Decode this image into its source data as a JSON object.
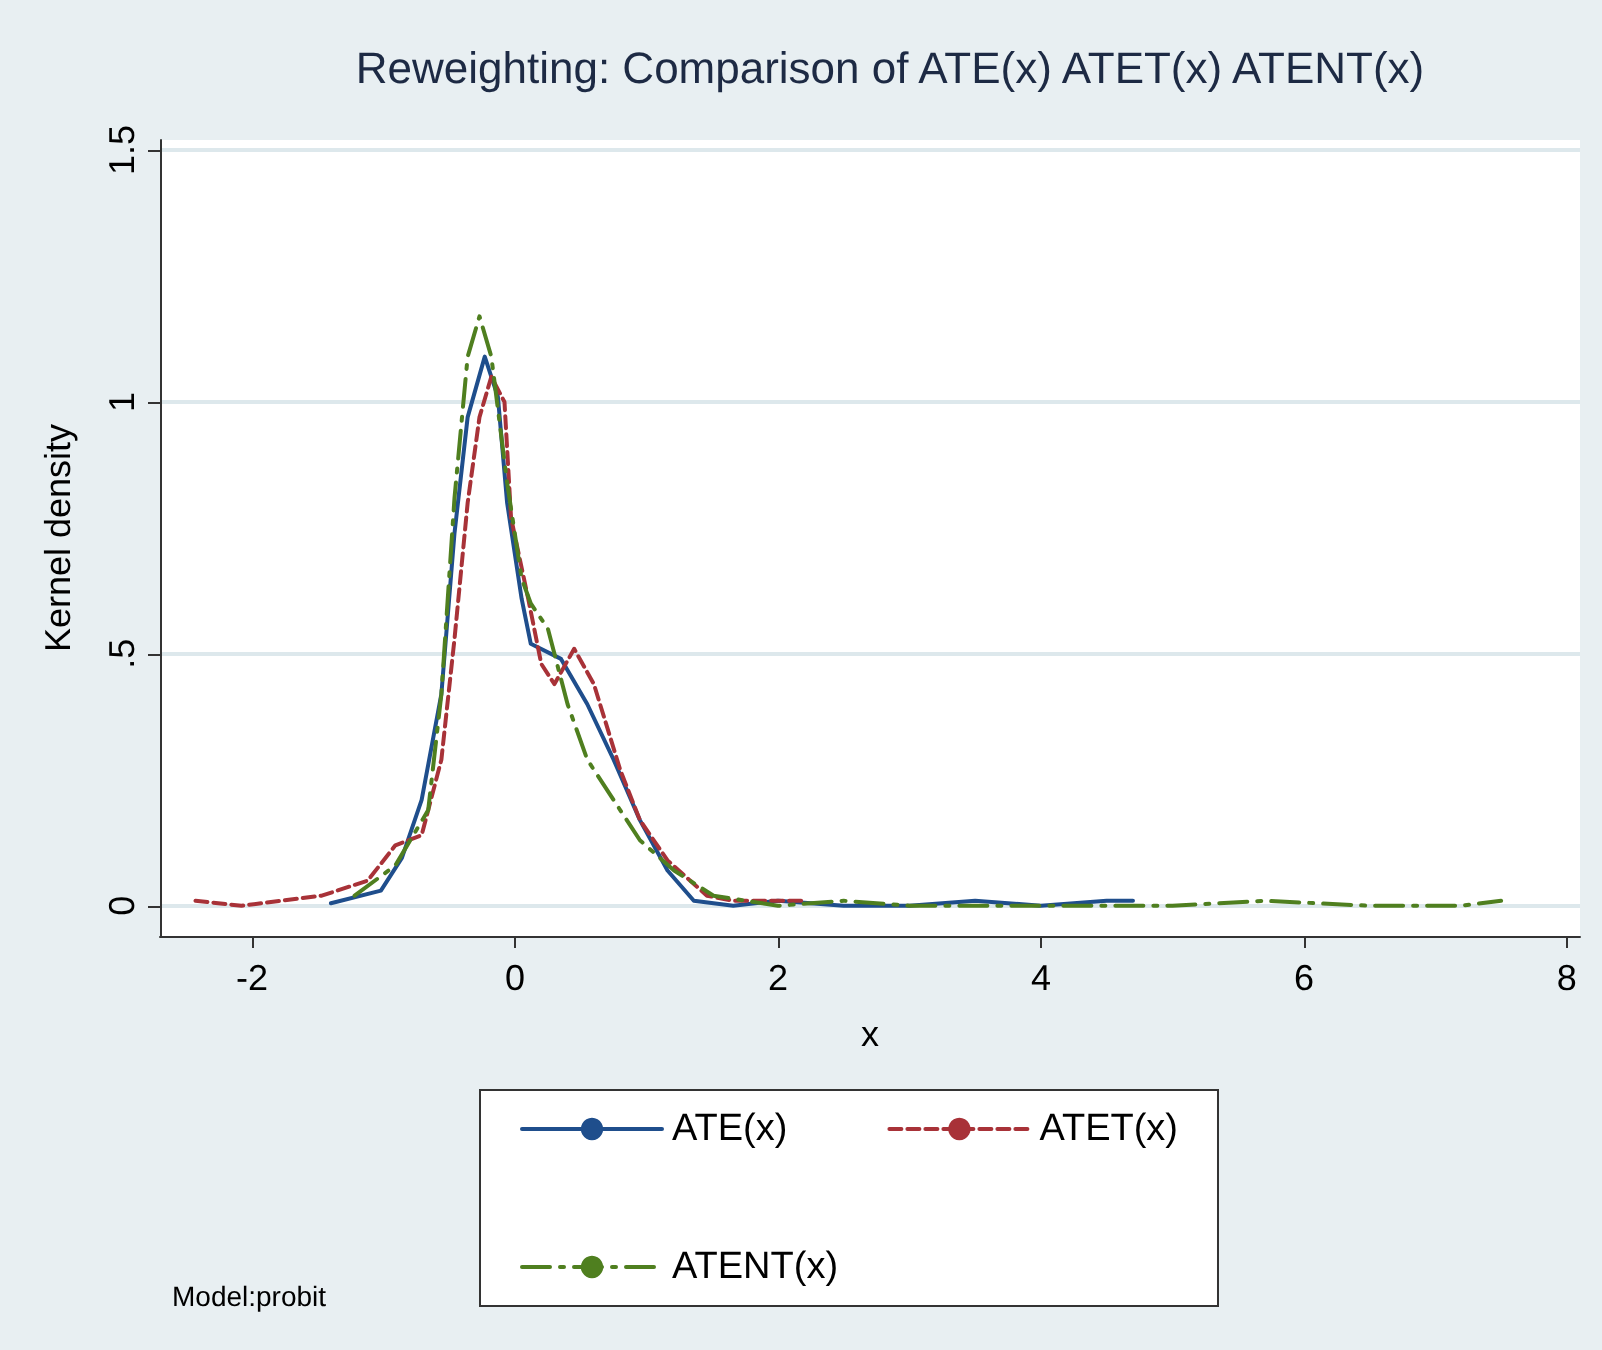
{
  "chart_data": {
    "type": "line",
    "title": "Reweighting: Comparison of ATE(x) ATET(x) ATENT(x)",
    "xlabel": "x",
    "ylabel": "Kernel density",
    "annotations": [
      "Model:probit"
    ],
    "xlim": [
      -2.7,
      8.1
    ],
    "xticks": [
      -2,
      0,
      2,
      4,
      6,
      8
    ],
    "ylim": [
      -0.06,
      1.52
    ],
    "yticks": [
      {
        "value": 0,
        "label": "0"
      },
      {
        "value": 0.5,
        "label": ".5"
      },
      {
        "value": 1,
        "label": "1"
      },
      {
        "value": 1.5,
        "label": "1.5"
      }
    ],
    "grid": "y",
    "legend": "bottom",
    "marker": "none",
    "series": [
      {
        "name": "ATE(x)",
        "color": "#1f4e8c",
        "line_style": "solid",
        "x": [
          -1.4,
          -1.02,
          -0.86,
          -0.71,
          -0.56,
          -0.46,
          -0.36,
          -0.23,
          -0.13,
          -0.06,
          0.05,
          0.12,
          0.35,
          0.55,
          0.75,
          0.95,
          1.16,
          1.36,
          1.66,
          2.0,
          2.5,
          3.0,
          3.5,
          4.0,
          4.5,
          4.7
        ],
        "values": [
          0.005,
          0.03,
          0.095,
          0.21,
          0.42,
          0.74,
          0.97,
          1.09,
          1.01,
          0.8,
          0.61,
          0.52,
          0.49,
          0.4,
          0.29,
          0.17,
          0.07,
          0.01,
          0.0,
          0.01,
          0.0,
          0.0,
          0.01,
          0.0,
          0.01,
          0.01
        ]
      },
      {
        "name": "ATET(x)",
        "color": "#a83238",
        "line_style": "dashed",
        "x": [
          -2.43,
          -2.08,
          -1.47,
          -1.12,
          -0.91,
          -0.71,
          -0.56,
          -0.46,
          -0.36,
          -0.27,
          -0.18,
          -0.08,
          -0.03,
          0.1,
          0.2,
          0.3,
          0.45,
          0.6,
          0.8,
          0.95,
          1.16,
          1.46,
          1.66,
          2.0,
          2.2
        ],
        "values": [
          0.01,
          0.0,
          0.02,
          0.05,
          0.12,
          0.14,
          0.29,
          0.53,
          0.8,
          0.97,
          1.05,
          1.0,
          0.77,
          0.61,
          0.48,
          0.44,
          0.51,
          0.44,
          0.27,
          0.17,
          0.09,
          0.02,
          0.01,
          0.01,
          0.01
        ]
      },
      {
        "name": "ATENT(x)",
        "color": "#4f7f1f",
        "line_style": "dashdot",
        "x": [
          -1.22,
          -0.91,
          -0.66,
          -0.56,
          -0.46,
          -0.36,
          -0.27,
          -0.18,
          -0.06,
          0.05,
          0.12,
          0.25,
          0.4,
          0.55,
          0.75,
          0.95,
          1.21,
          1.51,
          2.0,
          2.5,
          3.0,
          4.0,
          5.0,
          5.7,
          6.5,
          7.2,
          7.5
        ],
        "values": [
          0.02,
          0.08,
          0.19,
          0.42,
          0.81,
          1.09,
          1.17,
          1.09,
          0.84,
          0.65,
          0.6,
          0.55,
          0.4,
          0.29,
          0.21,
          0.13,
          0.07,
          0.02,
          0.0,
          0.01,
          0.0,
          0.0,
          0.0,
          0.01,
          0.0,
          0.0,
          0.01
        ]
      }
    ]
  }
}
